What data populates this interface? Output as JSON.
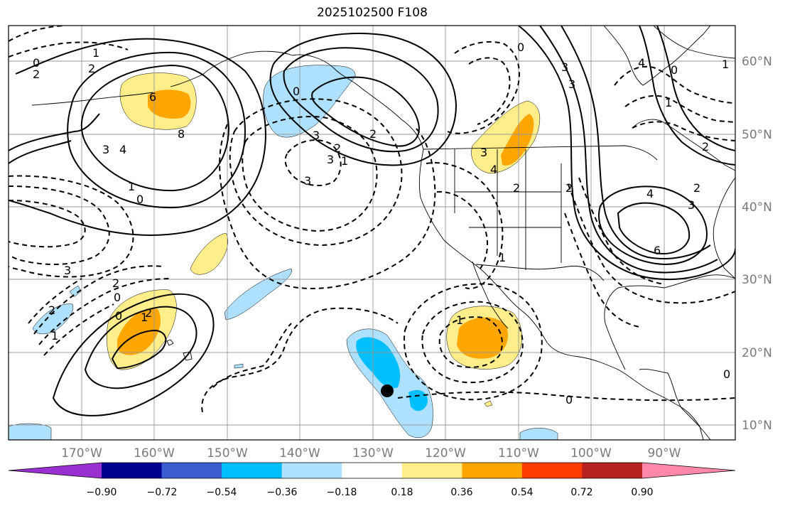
{
  "title": "2025102500 F108",
  "map": {
    "lon_ticks": [
      "170°W",
      "160°W",
      "150°W",
      "140°W",
      "130°W",
      "120°W",
      "110°W",
      "100°W",
      "90°W"
    ],
    "lat_ticks": [
      "60°N",
      "50°N",
      "40°N",
      "30°N",
      "20°N",
      "10°N"
    ],
    "contour_labels": [
      "0",
      "1",
      "2",
      "2",
      "6",
      "8",
      "3",
      "4",
      "1",
      "0",
      "3",
      "2",
      "0",
      "2",
      "1",
      "2",
      "1",
      "0",
      "3",
      "0",
      "2",
      "2",
      "3",
      "3",
      "1",
      "1",
      "1",
      "3",
      "4",
      "2",
      "2",
      "3",
      "3",
      "4",
      "4",
      "0",
      "2",
      "6",
      "3",
      "0",
      "0",
      "0",
      "1",
      "1",
      "2"
    ]
  },
  "colorbar": {
    "colors": [
      "#9a30d0",
      "#000090",
      "#3a5cd0",
      "#00bfff",
      "#aee0ff",
      "#ffffff",
      "#ffee8a",
      "#ffa600",
      "#ff3a00",
      "#b52020",
      "#ff88aa"
    ],
    "ticks": [
      "−0.90",
      "−0.72",
      "−0.54",
      "−0.36",
      "−0.18",
      "0.18",
      "0.36",
      "0.54",
      "0.72",
      "0.90"
    ]
  }
}
